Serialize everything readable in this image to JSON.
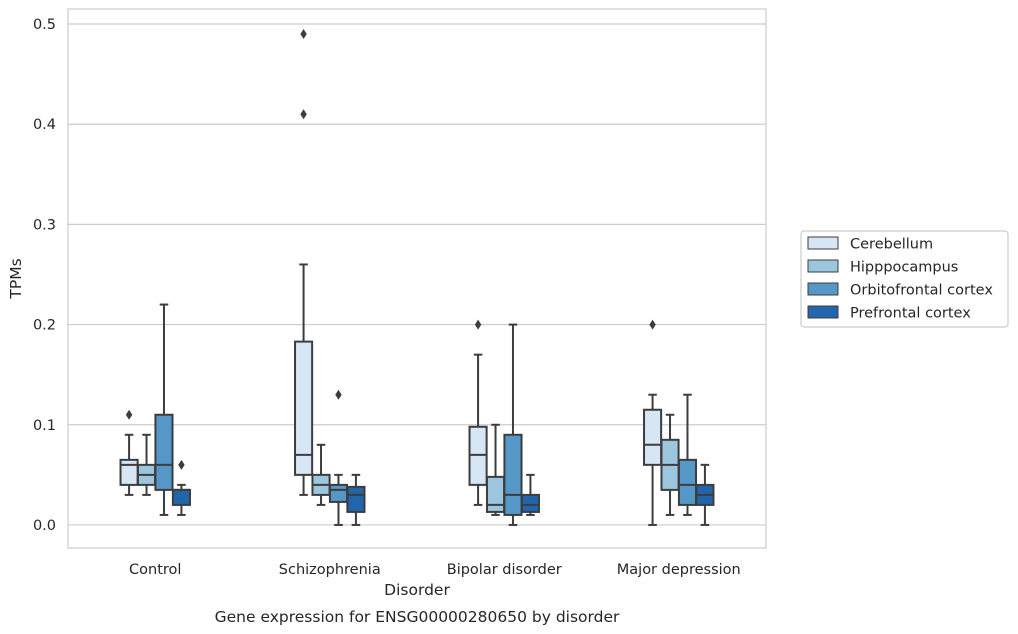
{
  "chart_data": {
    "type": "box",
    "caption": "Gene expression for ENSG00000280650 by disorder",
    "xlabel": "Disorder",
    "ylabel": "TPMs",
    "ylim": [
      -0.023,
      0.515
    ],
    "yticks": [
      "0.0",
      "0.1",
      "0.2",
      "0.3",
      "0.4",
      "0.5"
    ],
    "grid": true,
    "legend_position": "right",
    "categories": [
      "Control",
      "Schizophrenia",
      "Bipolar disorder",
      "Major depression"
    ],
    "series": [
      {
        "name": "Cerebellum",
        "color": "#d7e6f4",
        "boxes": [
          {
            "whislo": 0.03,
            "q1": 0.04,
            "med": 0.06,
            "q3": 0.065,
            "whishi": 0.09,
            "fliers": [
              0.11
            ]
          },
          {
            "whislo": 0.03,
            "q1": 0.05,
            "med": 0.07,
            "q3": 0.183,
            "whishi": 0.26,
            "fliers": [
              0.41,
              0.49
            ]
          },
          {
            "whislo": 0.02,
            "q1": 0.04,
            "med": 0.07,
            "q3": 0.098,
            "whishi": 0.17,
            "fliers": [
              0.2
            ]
          },
          {
            "whislo": 0.0,
            "q1": 0.06,
            "med": 0.08,
            "q3": 0.115,
            "whishi": 0.13,
            "fliers": [
              0.2
            ]
          }
        ]
      },
      {
        "name": "Hipppocampus",
        "color": "#9cc5de",
        "boxes": [
          {
            "whislo": 0.03,
            "q1": 0.04,
            "med": 0.05,
            "q3": 0.06,
            "whishi": 0.09,
            "fliers": []
          },
          {
            "whislo": 0.02,
            "q1": 0.03,
            "med": 0.04,
            "q3": 0.05,
            "whishi": 0.08,
            "fliers": []
          },
          {
            "whislo": 0.01,
            "q1": 0.013,
            "med": 0.02,
            "q3": 0.048,
            "whishi": 0.1,
            "fliers": []
          },
          {
            "whislo": 0.01,
            "q1": 0.035,
            "med": 0.06,
            "q3": 0.085,
            "whishi": 0.11,
            "fliers": []
          }
        ]
      },
      {
        "name": "Orbitofrontal cortex",
        "color": "#5598c7",
        "boxes": [
          {
            "whislo": 0.01,
            "q1": 0.035,
            "med": 0.06,
            "q3": 0.11,
            "whishi": 0.22,
            "fliers": []
          },
          {
            "whislo": 0.0,
            "q1": 0.023,
            "med": 0.035,
            "q3": 0.04,
            "whishi": 0.05,
            "fliers": [
              0.13
            ]
          },
          {
            "whislo": 0.0,
            "q1": 0.01,
            "med": 0.03,
            "q3": 0.09,
            "whishi": 0.2,
            "fliers": []
          },
          {
            "whislo": 0.01,
            "q1": 0.02,
            "med": 0.04,
            "q3": 0.065,
            "whishi": 0.13,
            "fliers": []
          }
        ]
      },
      {
        "name": "Prefrontal cortex",
        "color": "#2166ac",
        "boxes": [
          {
            "whislo": 0.01,
            "q1": 0.02,
            "med": 0.035,
            "q3": 0.035,
            "whishi": 0.04,
            "fliers": [
              0.06
            ]
          },
          {
            "whislo": 0.0,
            "q1": 0.013,
            "med": 0.03,
            "q3": 0.038,
            "whishi": 0.05,
            "fliers": []
          },
          {
            "whislo": 0.01,
            "q1": 0.013,
            "med": 0.02,
            "q3": 0.03,
            "whishi": 0.05,
            "fliers": []
          },
          {
            "whislo": 0.0,
            "q1": 0.02,
            "med": 0.03,
            "q3": 0.04,
            "whishi": 0.06,
            "fliers": []
          }
        ]
      }
    ]
  }
}
